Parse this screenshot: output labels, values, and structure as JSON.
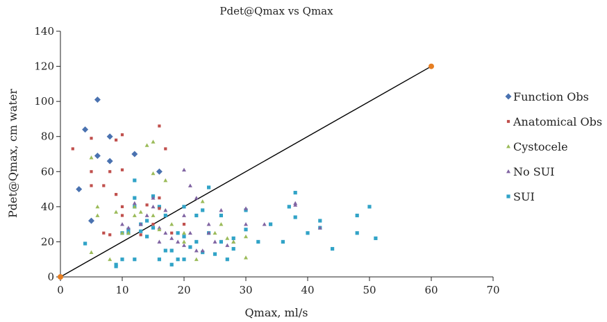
{
  "chart_data": {
    "type": "scatter",
    "title": "Pdet@Qmax vs Qmax",
    "xlabel": "Qmax, ml/s",
    "ylabel": "Pdet@Qmax, cm water",
    "xlim": [
      0,
      70
    ],
    "ylim": [
      0,
      140
    ],
    "xticks": [
      0,
      10,
      20,
      30,
      40,
      50,
      60,
      70
    ],
    "yticks": [
      0,
      20,
      40,
      60,
      80,
      100,
      120,
      140
    ],
    "grid": false,
    "legend": "right",
    "series": [
      {
        "name": "Function Obs",
        "marker": "diamond",
        "color": "#4a72b0",
        "points": [
          [
            3,
            50
          ],
          [
            4,
            84
          ],
          [
            5,
            32
          ],
          [
            6,
            101
          ],
          [
            6,
            69
          ],
          [
            8,
            80
          ],
          [
            8,
            66
          ],
          [
            12,
            70
          ],
          [
            16,
            60
          ]
        ]
      },
      {
        "name": "Anatomical Obs",
        "marker": "square-small",
        "color": "#c0504d",
        "points": [
          [
            2,
            73
          ],
          [
            5,
            79
          ],
          [
            5,
            60
          ],
          [
            5,
            52
          ],
          [
            7,
            52
          ],
          [
            7,
            25
          ],
          [
            8,
            60
          ],
          [
            8,
            24
          ],
          [
            9,
            78
          ],
          [
            9,
            47
          ],
          [
            10,
            81
          ],
          [
            10,
            61
          ],
          [
            10,
            40
          ],
          [
            10,
            35
          ],
          [
            12,
            70
          ],
          [
            13,
            24
          ],
          [
            14,
            41
          ],
          [
            15,
            30
          ],
          [
            16,
            86
          ],
          [
            16,
            45
          ],
          [
            16,
            39
          ],
          [
            17,
            73
          ],
          [
            18,
            25
          ],
          [
            20,
            30
          ]
        ]
      },
      {
        "name": "Cystocele",
        "marker": "triangle",
        "color": "#9bbb59",
        "points": [
          [
            5,
            68
          ],
          [
            5,
            14
          ],
          [
            6,
            40
          ],
          [
            6,
            35
          ],
          [
            8,
            10
          ],
          [
            9,
            37
          ],
          [
            10,
            25
          ],
          [
            11,
            25
          ],
          [
            12,
            40
          ],
          [
            12,
            35
          ],
          [
            13,
            37
          ],
          [
            14,
            75
          ],
          [
            15,
            77
          ],
          [
            15,
            59
          ],
          [
            15,
            35
          ],
          [
            16,
            27
          ],
          [
            17,
            55
          ],
          [
            18,
            30
          ],
          [
            20,
            20
          ],
          [
            20,
            25
          ],
          [
            22,
            10
          ],
          [
            23,
            43
          ],
          [
            25,
            25
          ],
          [
            26,
            30
          ],
          [
            27,
            22
          ],
          [
            28,
            20
          ],
          [
            30,
            23
          ],
          [
            30,
            11
          ]
        ]
      },
      {
        "name": "No SUI",
        "marker": "triangle",
        "color": "#8064a2",
        "points": [
          [
            10,
            30
          ],
          [
            11,
            28
          ],
          [
            12,
            42
          ],
          [
            13,
            30
          ],
          [
            14,
            35
          ],
          [
            15,
            45
          ],
          [
            15,
            40
          ],
          [
            16,
            28
          ],
          [
            16,
            20
          ],
          [
            17,
            38
          ],
          [
            17,
            25
          ],
          [
            18,
            22
          ],
          [
            19,
            20
          ],
          [
            20,
            61
          ],
          [
            20,
            35
          ],
          [
            20,
            18
          ],
          [
            21,
            25
          ],
          [
            21,
            52
          ],
          [
            22,
            15
          ],
          [
            22,
            45
          ],
          [
            23,
            15
          ],
          [
            24,
            30
          ],
          [
            24,
            25
          ],
          [
            25,
            20
          ],
          [
            26,
            38
          ],
          [
            27,
            18
          ],
          [
            28,
            20
          ],
          [
            30,
            30
          ],
          [
            30,
            39
          ],
          [
            33,
            30
          ],
          [
            38,
            42
          ],
          [
            38,
            41
          ],
          [
            42,
            28
          ]
        ]
      },
      {
        "name": "SUI",
        "marker": "square",
        "color": "#31a3c7",
        "points": [
          [
            4,
            19
          ],
          [
            9,
            7
          ],
          [
            9,
            6
          ],
          [
            10,
            10
          ],
          [
            10,
            25
          ],
          [
            11,
            25
          ],
          [
            11,
            27
          ],
          [
            12,
            55
          ],
          [
            12,
            45
          ],
          [
            12,
            40
          ],
          [
            12,
            10
          ],
          [
            13,
            30
          ],
          [
            13,
            26
          ],
          [
            14,
            32
          ],
          [
            14,
            23
          ],
          [
            15,
            46
          ],
          [
            15,
            28
          ],
          [
            16,
            40
          ],
          [
            16,
            10
          ],
          [
            17,
            35
          ],
          [
            17,
            15
          ],
          [
            18,
            7
          ],
          [
            18,
            15
          ],
          [
            19,
            25
          ],
          [
            19,
            10
          ],
          [
            20,
            23
          ],
          [
            20,
            40
          ],
          [
            20,
            10
          ],
          [
            21,
            17
          ],
          [
            22,
            35
          ],
          [
            22,
            20
          ],
          [
            23,
            14
          ],
          [
            23,
            38
          ],
          [
            24,
            51
          ],
          [
            24,
            25
          ],
          [
            25,
            13
          ],
          [
            26,
            20
          ],
          [
            26,
            35
          ],
          [
            27,
            10
          ],
          [
            28,
            16
          ],
          [
            28,
            22
          ],
          [
            30,
            38
          ],
          [
            30,
            27
          ],
          [
            32,
            20
          ],
          [
            34,
            30
          ],
          [
            36,
            20
          ],
          [
            37,
            40
          ],
          [
            38,
            48
          ],
          [
            38,
            34
          ],
          [
            40,
            25
          ],
          [
            42,
            32
          ],
          [
            42,
            28
          ],
          [
            44,
            16
          ],
          [
            48,
            35
          ],
          [
            48,
            25
          ],
          [
            50,
            40
          ],
          [
            51,
            22
          ]
        ]
      }
    ],
    "reference_line": {
      "from": [
        0,
        0
      ],
      "to": [
        60,
        120
      ],
      "color": "#000000",
      "endpoint_color": "#e67e22"
    }
  }
}
